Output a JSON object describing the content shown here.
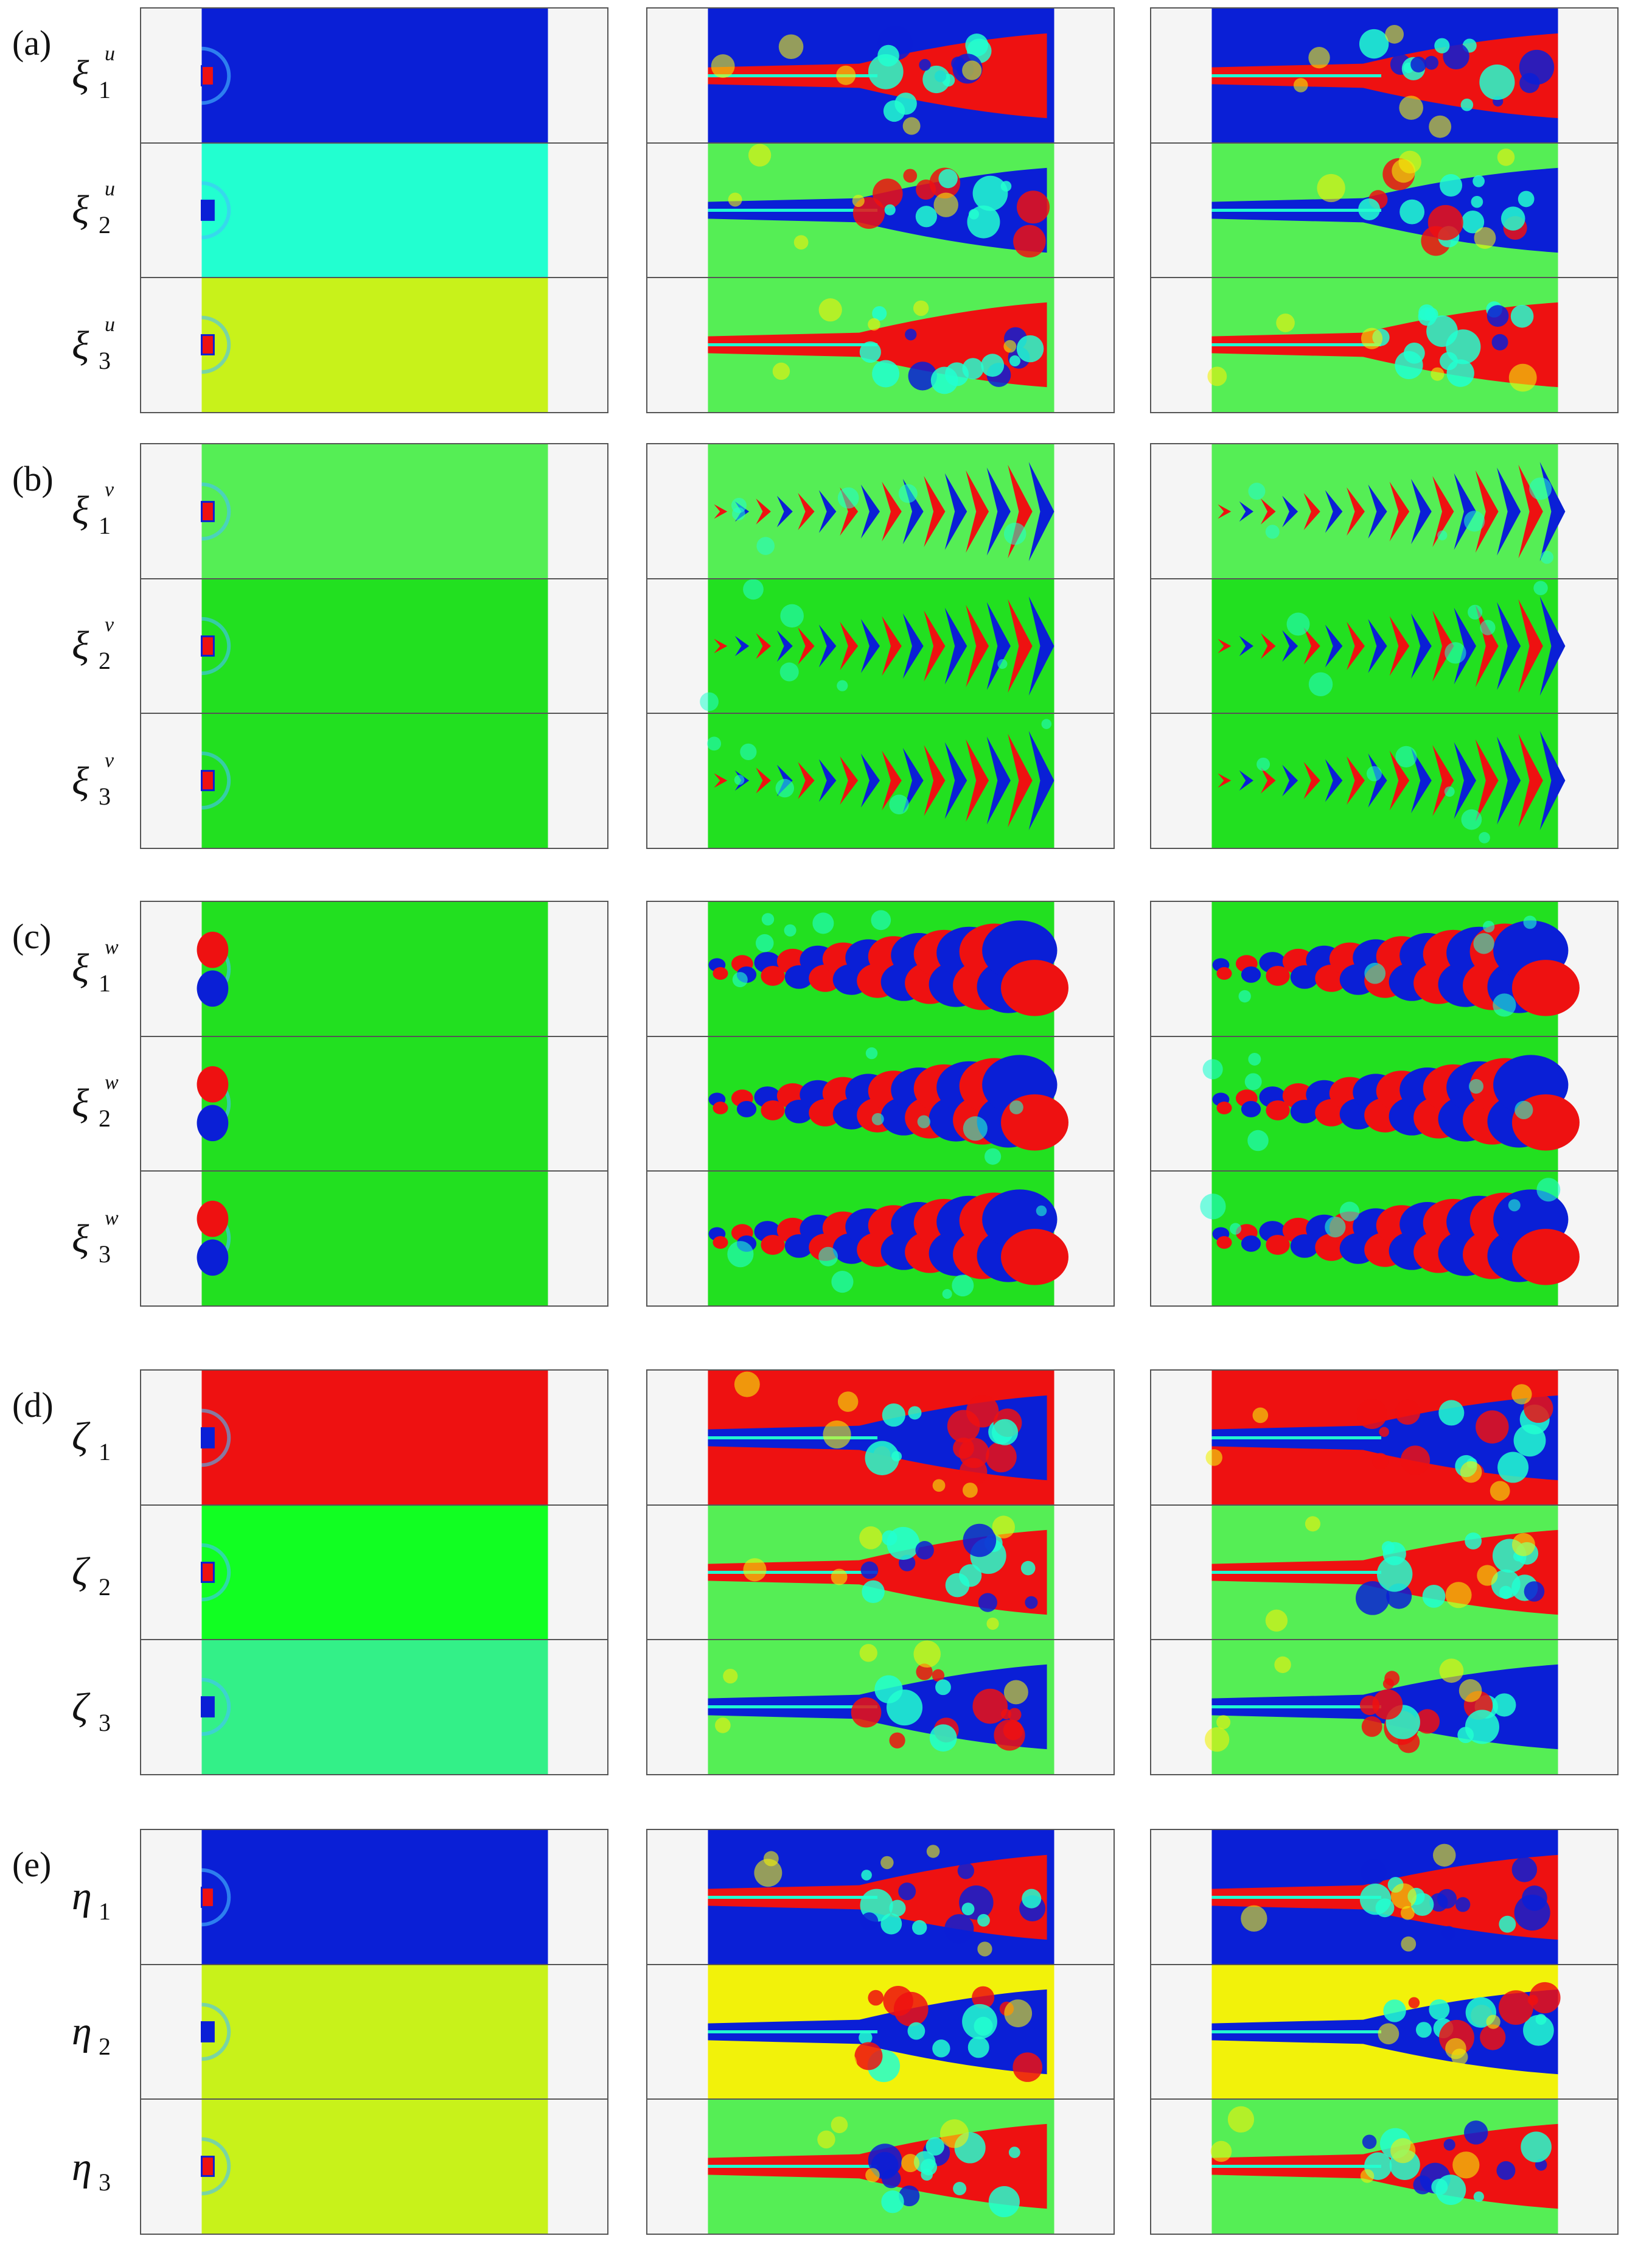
{
  "colors": {
    "blue": "#0a1fd6",
    "red": "#ee1111",
    "green": "#22e020",
    "lightgreen": "#55ee55",
    "yellow": "#f2f20a",
    "cyan": "#22ffd0",
    "lime": "#c8f21a",
    "brightgreen": "#11ff22",
    "mint": "#33f088",
    "orange": "#f57d20",
    "lightblue": "#44c0ff",
    "border": "#555555",
    "margin": "#f5f5f5"
  },
  "groups": [
    {
      "label": "(a)",
      "rows": [
        {
          "symbol": "ξ",
          "sup": "u",
          "sub": "1",
          "bg0": "blue",
          "bg1": "blue",
          "jet": "red",
          "style": "plume"
        },
        {
          "symbol": "ξ",
          "sup": "u",
          "sub": "2",
          "bg0": "cyan",
          "bg1": "lightgreen",
          "jet": "blue",
          "style": "plume"
        },
        {
          "symbol": "ξ",
          "sup": "u",
          "sub": "3",
          "bg0": "lime",
          "bg1": "lightgreen",
          "jet": "red",
          "style": "plume"
        }
      ]
    },
    {
      "label": "(b)",
      "rows": [
        {
          "symbol": "ξ",
          "sup": "v",
          "sub": "1",
          "bg0": "lightgreen",
          "bg1": "lightgreen",
          "jet": "red",
          "style": "chevron"
        },
        {
          "symbol": "ξ",
          "sup": "v",
          "sub": "2",
          "bg0": "green",
          "bg1": "green",
          "jet": "red",
          "style": "chevron"
        },
        {
          "symbol": "ξ",
          "sup": "v",
          "sub": "3",
          "bg0": "green",
          "bg1": "green",
          "jet": "red",
          "style": "chevron"
        }
      ]
    },
    {
      "label": "(c)",
      "rows": [
        {
          "symbol": "ξ",
          "sup": "w",
          "sub": "1",
          "bg0": "green",
          "bg1": "green",
          "jet": "red",
          "style": "blobs"
        },
        {
          "symbol": "ξ",
          "sup": "w",
          "sub": "2",
          "bg0": "green",
          "bg1": "green",
          "jet": "red",
          "style": "blobs"
        },
        {
          "symbol": "ξ",
          "sup": "w",
          "sub": "3",
          "bg0": "green",
          "bg1": "green",
          "jet": "red",
          "style": "blobs"
        }
      ]
    },
    {
      "label": "(d)",
      "rows": [
        {
          "symbol": "ζ",
          "sup": "",
          "sub": "1",
          "bg0": "red",
          "bg1": "red",
          "jet": "blue",
          "style": "plume"
        },
        {
          "symbol": "ζ",
          "sup": "",
          "sub": "2",
          "bg0": "brightgreen",
          "bg1": "lightgreen",
          "jet": "red",
          "style": "plume"
        },
        {
          "symbol": "ζ",
          "sup": "",
          "sub": "3",
          "bg0": "mint",
          "bg1": "lightgreen",
          "jet": "blue",
          "style": "plume"
        }
      ]
    },
    {
      "label": "(e)",
      "rows": [
        {
          "symbol": "η",
          "sup": "",
          "sub": "1",
          "bg0": "blue",
          "bg1": "blue",
          "jet": "red",
          "style": "plume"
        },
        {
          "symbol": "η",
          "sup": "",
          "sub": "2",
          "bg0": "lime",
          "bg1": "yellow",
          "jet": "blue",
          "style": "plume"
        },
        {
          "symbol": "η",
          "sup": "",
          "sub": "3",
          "bg0": "lime",
          "bg1": "lightgreen",
          "jet": "red",
          "style": "plume"
        }
      ]
    }
  ]
}
